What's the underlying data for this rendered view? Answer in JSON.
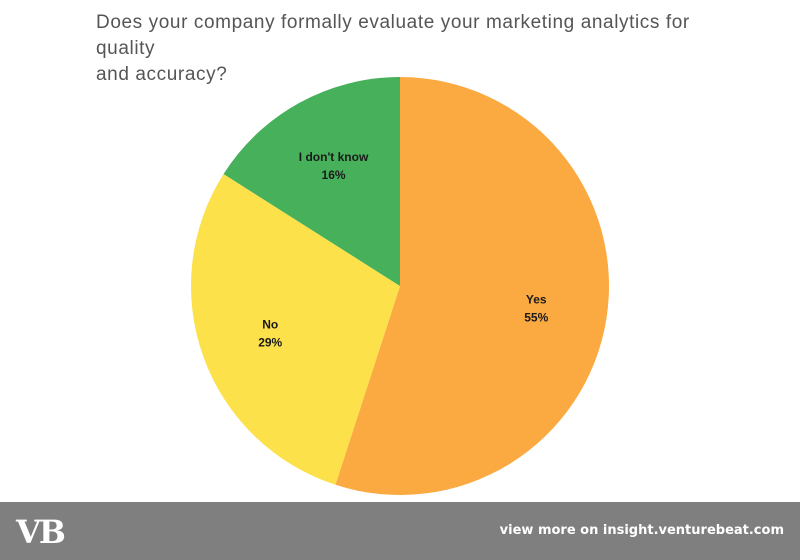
{
  "title_lines": [
    "Does your company formally evaluate your marketing analytics for quality",
    "and accuracy?"
  ],
  "chart_data": {
    "type": "pie",
    "title": "Does your company formally evaluate your marketing analytics for quality and accuracy?",
    "start_angle_deg": 0,
    "direction": "clockwise",
    "slices": [
      {
        "label": "Yes",
        "value": 55,
        "value_label": "55%",
        "color": "#FBAA42"
      },
      {
        "label": "No",
        "value": 29,
        "value_label": "29%",
        "color": "#FCE14B"
      },
      {
        "label": "I don't know",
        "value": 16,
        "value_label": "16%",
        "color": "#46B05A"
      }
    ],
    "legend": "none",
    "data_labels": "inside"
  },
  "footer": {
    "logo": "VB",
    "link": "view more on insight.venturebeat.com"
  }
}
